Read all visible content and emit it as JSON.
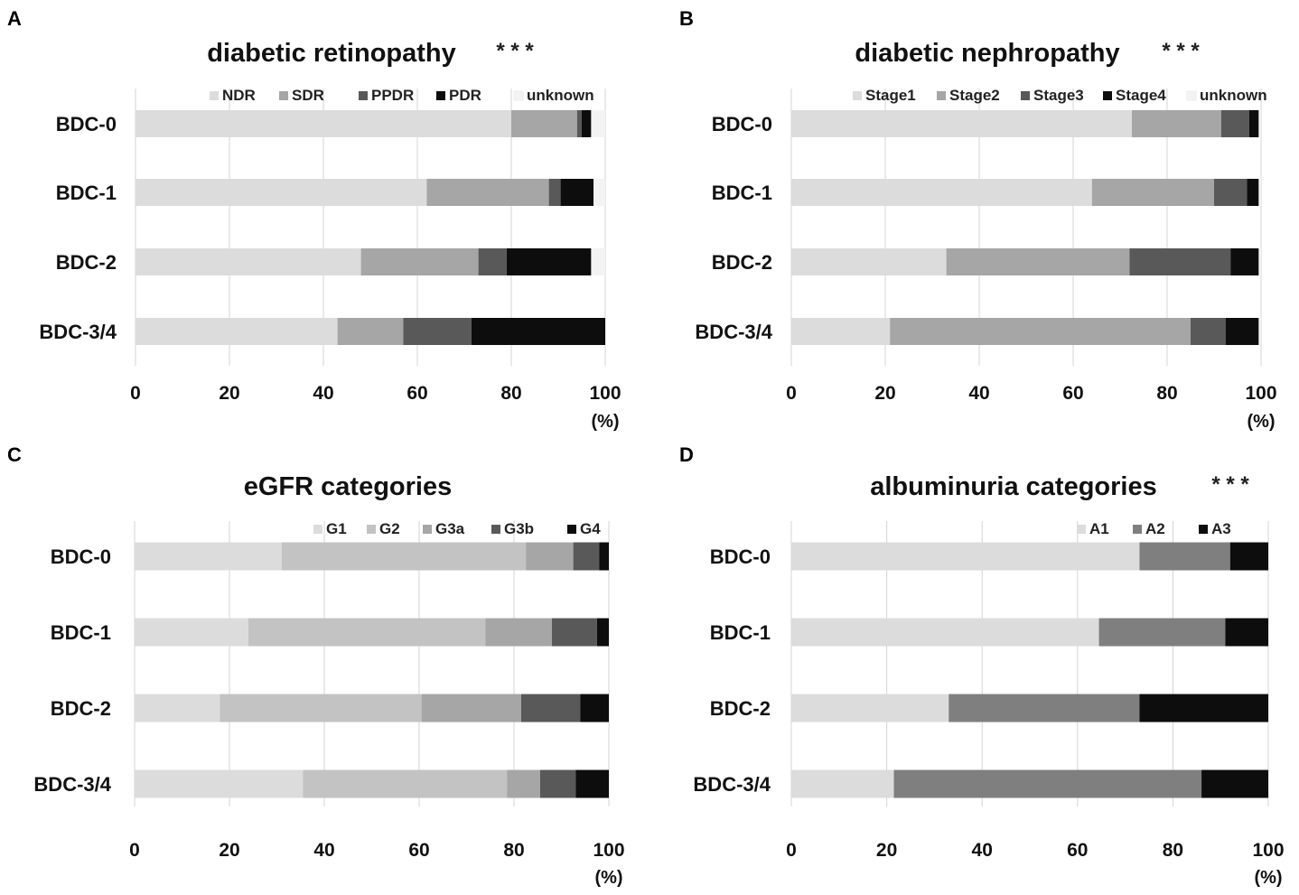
{
  "chart_data": [
    {
      "panel_letter": "A",
      "type": "bar",
      "orientation": "horizontal",
      "stacked": true,
      "title": "diabetic retinopathy",
      "significance": "* * *",
      "categories": [
        "BDC-0",
        "BDC-1",
        "BDC-2",
        "BDC-3/4"
      ],
      "series": [
        {
          "name": "NDR",
          "color": "#dcdcdc",
          "values": [
            80,
            62,
            48,
            43
          ]
        },
        {
          "name": "SDR",
          "color": "#a6a6a6",
          "values": [
            14,
            26,
            25,
            14
          ]
        },
        {
          "name": "PPDR",
          "color": "#595959",
          "values": [
            1,
            2.5,
            6,
            14.5
          ]
        },
        {
          "name": "PDR",
          "color": "#0d0d0d",
          "values": [
            2,
            7,
            18,
            28.5
          ]
        },
        {
          "name": "unknown",
          "color": "#f3f3f3",
          "values": [
            3,
            2.5,
            3,
            0
          ]
        }
      ],
      "xticks": [
        "0",
        "20",
        "40",
        "60",
        "80",
        "100"
      ],
      "xlim": [
        0,
        100
      ],
      "xunit": "(%)",
      "grid": true,
      "legend": "top"
    },
    {
      "panel_letter": "B",
      "type": "bar",
      "orientation": "horizontal",
      "stacked": true,
      "title": "diabetic nephropathy",
      "significance": "* * *",
      "categories": [
        "BDC-0",
        "BDC-1",
        "BDC-2",
        "BDC-3/4"
      ],
      "series": [
        {
          "name": "Stage1",
          "color": "#dcdcdc",
          "values": [
            72.5,
            64,
            33,
            21
          ]
        },
        {
          "name": "Stage2",
          "color": "#a6a6a6",
          "values": [
            19,
            26,
            39,
            64
          ]
        },
        {
          "name": "Stage3",
          "color": "#595959",
          "values": [
            6,
            7,
            21.5,
            7.5
          ]
        },
        {
          "name": "Stage4",
          "color": "#0d0d0d",
          "values": [
            2,
            2.5,
            6,
            7
          ]
        },
        {
          "name": "unknown",
          "color": "#f3f3f3",
          "values": [
            0.5,
            0.5,
            0.5,
            0.5
          ]
        }
      ],
      "xticks": [
        "0",
        "20",
        "40",
        "60",
        "80",
        "100"
      ],
      "xlim": [
        0,
        100
      ],
      "xunit": "(%)",
      "grid": true,
      "legend": "top"
    },
    {
      "panel_letter": "C",
      "type": "bar",
      "orientation": "horizontal",
      "stacked": true,
      "title": "eGFR categories",
      "significance": "",
      "categories": [
        "BDC-0",
        "BDC-1",
        "BDC-2",
        "BDC-3/4"
      ],
      "series": [
        {
          "name": "G1",
          "color": "#dcdcdc",
          "values": [
            31,
            24,
            18,
            35.5
          ]
        },
        {
          "name": "G2",
          "color": "#c3c3c3",
          "values": [
            51.5,
            50,
            42.5,
            43
          ]
        },
        {
          "name": "G3a",
          "color": "#a6a6a6",
          "values": [
            10,
            14,
            21,
            7
          ]
        },
        {
          "name": "G3b",
          "color": "#595959",
          "values": [
            5.5,
            9.5,
            12.5,
            7.5
          ]
        },
        {
          "name": "G4",
          "color": "#0d0d0d",
          "values": [
            2,
            2.5,
            6,
            7
          ]
        }
      ],
      "xticks": [
        "0",
        "20",
        "40",
        "60",
        "80",
        "100"
      ],
      "xlim": [
        0,
        100
      ],
      "xunit": "(%)",
      "grid": true,
      "legend": "top"
    },
    {
      "panel_letter": "D",
      "type": "bar",
      "orientation": "horizontal",
      "stacked": true,
      "title": "albuminuria categories",
      "significance": "* * *",
      "categories": [
        "BDC-0",
        "BDC-1",
        "BDC-2",
        "BDC-3/4"
      ],
      "series": [
        {
          "name": "A1",
          "color": "#dcdcdc",
          "values": [
            73,
            64.5,
            33,
            21.5
          ]
        },
        {
          "name": "A2",
          "color": "#7f7f7f",
          "values": [
            19,
            26.5,
            40,
            64.5
          ]
        },
        {
          "name": "A3",
          "color": "#0d0d0d",
          "values": [
            8,
            9,
            27,
            14
          ]
        }
      ],
      "xticks": [
        "0",
        "20",
        "40",
        "60",
        "80",
        "100"
      ],
      "xlim": [
        0,
        100
      ],
      "xunit": "(%)",
      "grid": true,
      "legend": "top"
    }
  ]
}
